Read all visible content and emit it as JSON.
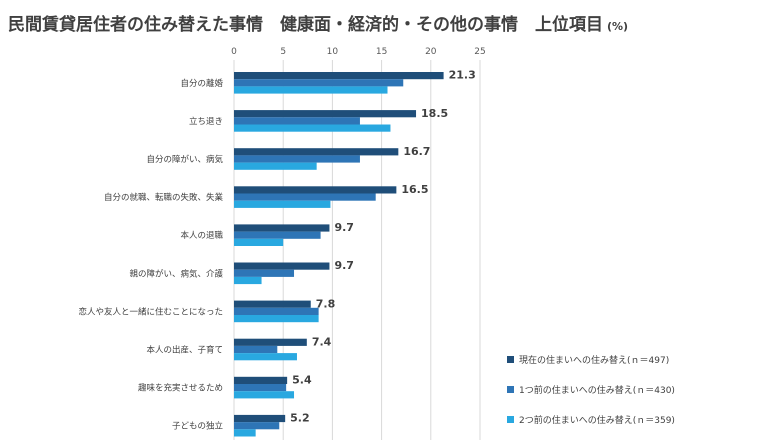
{
  "chart_data": {
    "type": "bar",
    "orientation": "horizontal",
    "title": "民間賃貸居住者の住み替えた事情　健康面・経済的・その他の事情　上位項目",
    "unit": "(%)",
    "xlim": [
      0,
      25
    ],
    "xticks": [
      0,
      5,
      10,
      15,
      20,
      25
    ],
    "grid": true,
    "legend_position": "bottom-right",
    "categories": [
      "自分の離婚",
      "立ち退き",
      "自分の障がい、病気",
      "自分の就職、転職の失敗、失業",
      "本人の退職",
      "親の障がい、病気、介護",
      "恋人や友人と一緒に住むことになった",
      "本人の出産、子育て",
      "趣味を充実させるため",
      "子どもの独立"
    ],
    "series": [
      {
        "name": "現在の住まいへの住み替え(ｎ＝497)",
        "color": "#1f4e79",
        "values": [
          21.3,
          18.5,
          16.7,
          16.5,
          9.7,
          9.7,
          7.8,
          7.4,
          5.4,
          5.2
        ]
      },
      {
        "name": "1つ前の住まいへの住み替え(ｎ＝430)",
        "color": "#2e75b6",
        "values": [
          17.2,
          12.8,
          12.8,
          14.4,
          8.8,
          6.1,
          8.6,
          4.4,
          5.3,
          4.6
        ]
      },
      {
        "name": "2つ前の住まいへの住み替え(ｎ＝359)",
        "color": "#29a8e0",
        "values": [
          15.6,
          15.9,
          8.4,
          9.8,
          5.0,
          2.8,
          8.6,
          6.4,
          6.1,
          2.2
        ]
      }
    ],
    "data_labels": [
      "21.3",
      "18.5",
      "16.7",
      "16.5",
      "9.7",
      "9.7",
      "7.8",
      "7.4",
      "5.4",
      "5.2"
    ]
  }
}
